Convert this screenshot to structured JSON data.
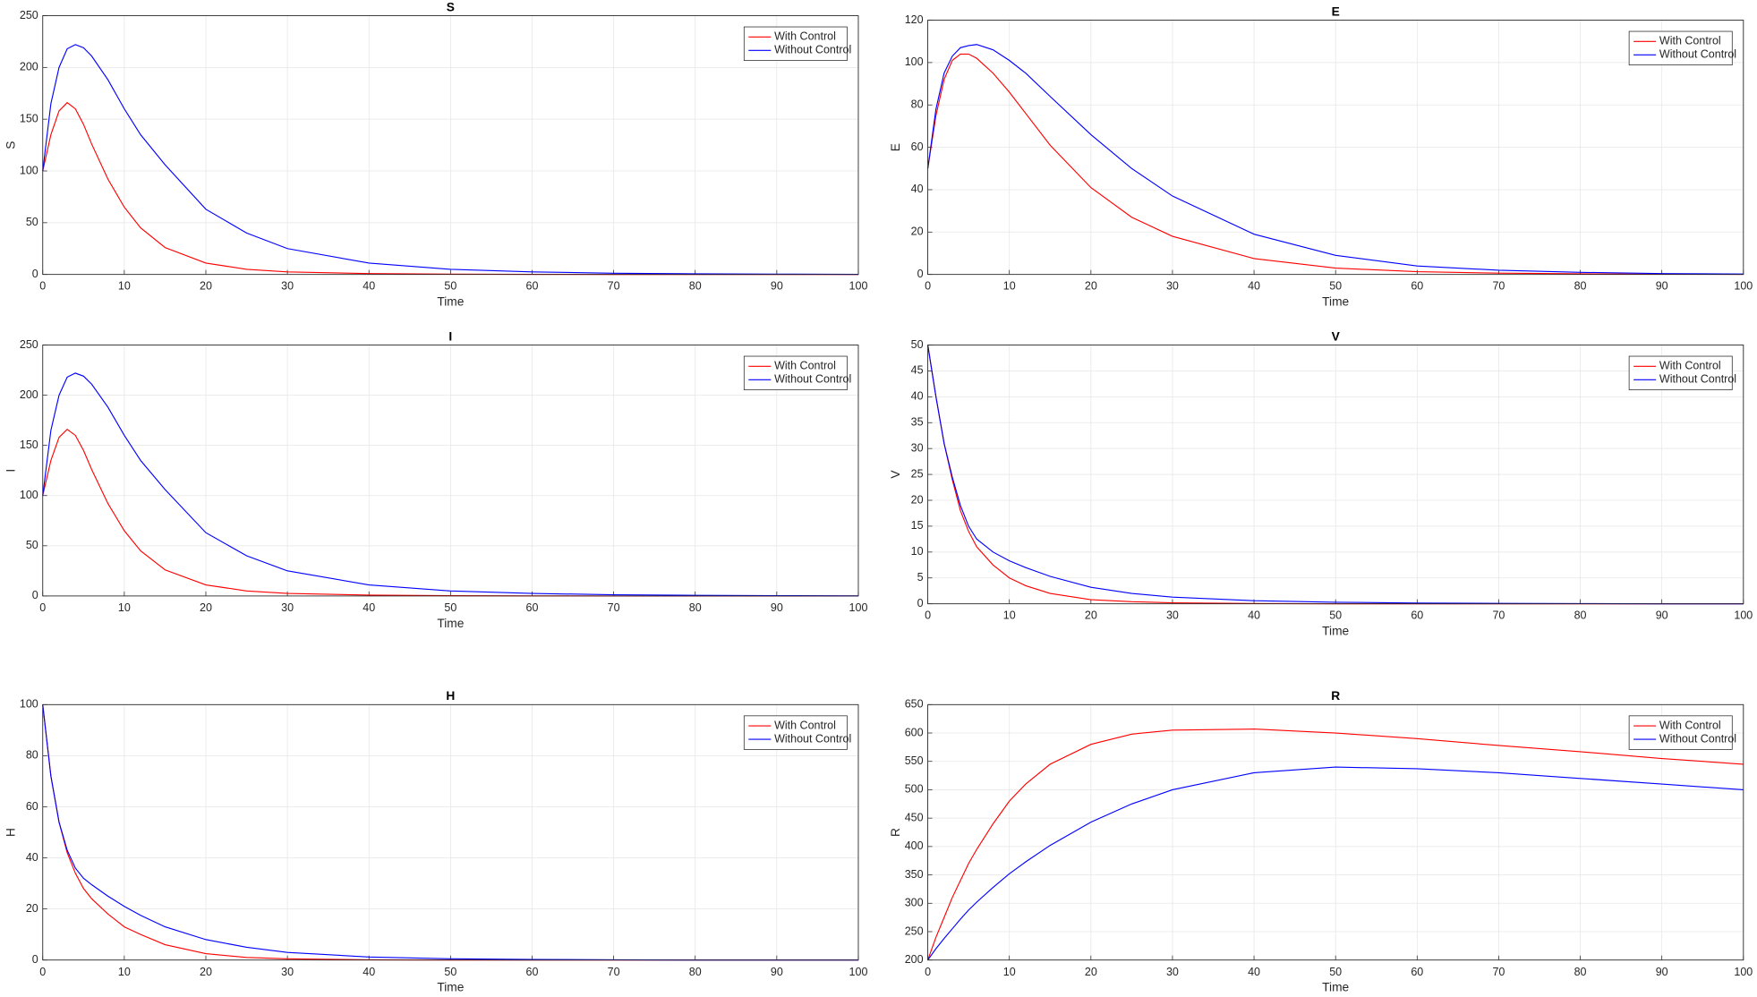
{
  "chart_data": [
    {
      "type": "line",
      "title": "S",
      "xlabel": "Time",
      "ylabel": "S",
      "x": [
        0,
        1,
        2,
        3,
        4,
        5,
        6,
        8,
        10,
        12,
        15,
        20,
        25,
        30,
        40,
        50,
        60,
        70,
        80,
        90,
        100
      ],
      "xlim": [
        0,
        100
      ],
      "xticks": [
        0,
        10,
        20,
        30,
        40,
        50,
        60,
        70,
        80,
        90,
        100
      ],
      "ylim": [
        0,
        250
      ],
      "yticks": [
        0,
        50,
        100,
        150,
        200,
        250
      ],
      "grid": true,
      "legend": "upper right",
      "series": [
        {
          "name": "With Control",
          "color": "#ff0000",
          "values": [
            100,
            135,
            158,
            166,
            160,
            145,
            126,
            92,
            65,
            45,
            26,
            11,
            5,
            2.5,
            0.8,
            0.3,
            0.1,
            0,
            0,
            0,
            0
          ]
        },
        {
          "name": "Without Control",
          "color": "#0000ff",
          "values": [
            100,
            165,
            200,
            218,
            222,
            219,
            211,
            188,
            160,
            135,
            106,
            63,
            40,
            25,
            11,
            5,
            2.5,
            1.2,
            0.6,
            0.3,
            0.1
          ]
        }
      ]
    },
    {
      "type": "line",
      "title": "E",
      "xlabel": "Time",
      "ylabel": "E",
      "x": [
        0,
        1,
        2,
        3,
        4,
        5,
        6,
        8,
        10,
        12,
        15,
        20,
        25,
        30,
        40,
        50,
        60,
        70,
        80,
        90,
        100
      ],
      "xlim": [
        0,
        100
      ],
      "xticks": [
        0,
        10,
        20,
        30,
        40,
        50,
        60,
        70,
        80,
        90,
        100
      ],
      "ylim": [
        0,
        120
      ],
      "yticks": [
        0,
        20,
        40,
        60,
        80,
        100,
        120
      ],
      "grid": true,
      "legend": "upper right",
      "series": [
        {
          "name": "With Control",
          "color": "#ff0000",
          "values": [
            50,
            75,
            92,
            101,
            104,
            104,
            102,
            95,
            86,
            76,
            61,
            41,
            27,
            18,
            7.5,
            3,
            1.3,
            0.6,
            0.3,
            0.1,
            0.05
          ]
        },
        {
          "name": "Without Control",
          "color": "#0000ff",
          "values": [
            50,
            78,
            95,
            103,
            107,
            108,
            108.5,
            106,
            101,
            95,
            84,
            66,
            50,
            37,
            19,
            9,
            4,
            2,
            1,
            0.4,
            0.2
          ]
        }
      ]
    },
    {
      "type": "line",
      "title": "I",
      "xlabel": "Time",
      "ylabel": "I",
      "x": [
        0,
        1,
        2,
        3,
        4,
        5,
        6,
        8,
        10,
        12,
        15,
        20,
        25,
        30,
        40,
        50,
        60,
        70,
        80,
        90,
        100
      ],
      "xlim": [
        0,
        100
      ],
      "xticks": [
        0,
        10,
        20,
        30,
        40,
        50,
        60,
        70,
        80,
        90,
        100
      ],
      "ylim": [
        0,
        250
      ],
      "yticks": [
        0,
        50,
        100,
        150,
        200,
        250
      ],
      "grid": true,
      "legend": "upper right",
      "series": [
        {
          "name": "With Control",
          "color": "#ff0000",
          "values": [
            100,
            135,
            158,
            166,
            160,
            145,
            126,
            92,
            65,
            45,
            26,
            11,
            5,
            2.5,
            0.8,
            0.3,
            0.1,
            0,
            0,
            0,
            0
          ]
        },
        {
          "name": "Without Control",
          "color": "#0000ff",
          "values": [
            100,
            165,
            200,
            218,
            222,
            219,
            211,
            188,
            160,
            135,
            106,
            63,
            40,
            25,
            11,
            5,
            2.5,
            1.2,
            0.6,
            0.3,
            0.1
          ]
        }
      ]
    },
    {
      "type": "line",
      "title": "V",
      "xlabel": "Time",
      "ylabel": "V",
      "x": [
        0,
        1,
        2,
        3,
        4,
        5,
        6,
        8,
        10,
        12,
        15,
        20,
        25,
        30,
        40,
        50,
        60,
        70,
        80,
        90,
        100
      ],
      "xlim": [
        0,
        100
      ],
      "xticks": [
        0,
        10,
        20,
        30,
        40,
        50,
        60,
        70,
        80,
        90,
        100
      ],
      "ylim": [
        0,
        50
      ],
      "yticks": [
        0,
        5,
        10,
        15,
        20,
        25,
        30,
        35,
        40,
        45,
        50
      ],
      "grid": true,
      "legend": "upper right",
      "series": [
        {
          "name": "With Control",
          "color": "#ff0000",
          "values": [
            50,
            40,
            31,
            24,
            18,
            14,
            11,
            7.5,
            5,
            3.5,
            2,
            0.8,
            0.4,
            0.2,
            0.05,
            0,
            0,
            0,
            0,
            0,
            0
          ]
        },
        {
          "name": "Without Control",
          "color": "#0000ff",
          "values": [
            50,
            40,
            31,
            24.5,
            19,
            15,
            12.5,
            10,
            8.3,
            7,
            5.3,
            3.2,
            2,
            1.3,
            0.6,
            0.3,
            0.15,
            0.08,
            0.04,
            0,
            0
          ]
        }
      ]
    },
    {
      "type": "line",
      "title": "H",
      "xlabel": "Time",
      "ylabel": "H",
      "x": [
        0,
        1,
        2,
        3,
        4,
        5,
        6,
        8,
        10,
        12,
        15,
        20,
        25,
        30,
        40,
        50,
        60,
        70,
        80,
        90,
        100
      ],
      "xlim": [
        0,
        100
      ],
      "xticks": [
        0,
        10,
        20,
        30,
        40,
        50,
        60,
        70,
        80,
        90,
        100
      ],
      "ylim": [
        0,
        100
      ],
      "yticks": [
        0,
        20,
        40,
        60,
        80,
        100
      ],
      "grid": true,
      "legend": "upper right",
      "series": [
        {
          "name": "With Control",
          "color": "#ff0000",
          "values": [
            100,
            72,
            54,
            42,
            34,
            28,
            24,
            18,
            13,
            10,
            6,
            2.5,
            1,
            0.5,
            0.1,
            0,
            0,
            0,
            0,
            0,
            0
          ]
        },
        {
          "name": "Without Control",
          "color": "#0000ff",
          "values": [
            100,
            72,
            54,
            43,
            36,
            32,
            29.5,
            25,
            21,
            17.5,
            13,
            8,
            5,
            3,
            1.2,
            0.5,
            0.2,
            0.1,
            0,
            0,
            0
          ]
        }
      ]
    },
    {
      "type": "line",
      "title": "R",
      "xlabel": "Time",
      "ylabel": "R",
      "x": [
        0,
        1,
        2,
        3,
        4,
        5,
        6,
        8,
        10,
        12,
        15,
        20,
        25,
        30,
        40,
        50,
        60,
        70,
        80,
        90,
        100
      ],
      "xlim": [
        0,
        100
      ],
      "xticks": [
        0,
        10,
        20,
        30,
        40,
        50,
        60,
        70,
        80,
        90,
        100
      ],
      "ylim": [
        200,
        650
      ],
      "yticks": [
        200,
        250,
        300,
        350,
        400,
        450,
        500,
        550,
        600,
        650
      ],
      "grid": true,
      "legend": "upper right",
      "series": [
        {
          "name": "With Control",
          "color": "#ff0000",
          "values": [
            200,
            240,
            275,
            310,
            340,
            370,
            395,
            440,
            480,
            510,
            545,
            580,
            598,
            605,
            607,
            600,
            590,
            578,
            567,
            555,
            545
          ]
        },
        {
          "name": "Without Control",
          "color": "#0000ff",
          "values": [
            200,
            220,
            238,
            255,
            272,
            288,
            302,
            328,
            352,
            373,
            402,
            443,
            475,
            500,
            530,
            540,
            537,
            530,
            520,
            510,
            500
          ]
        }
      ]
    }
  ]
}
